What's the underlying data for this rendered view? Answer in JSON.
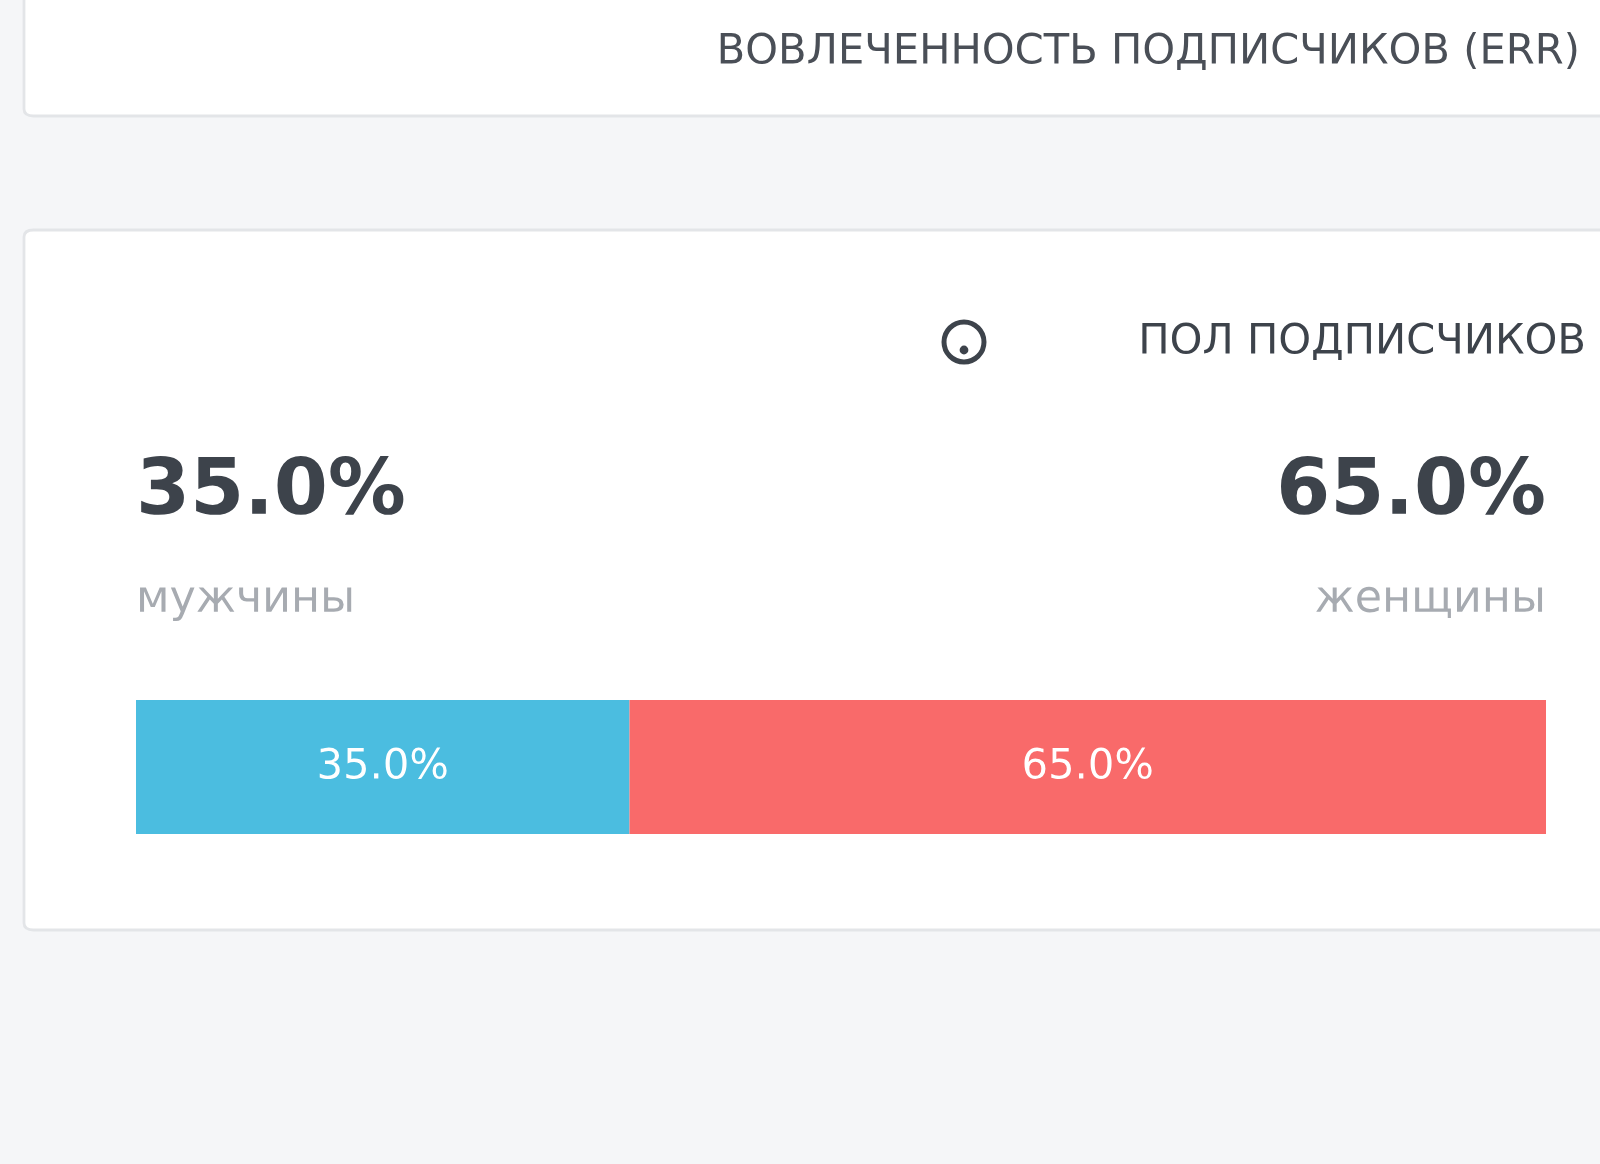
{
  "chart_data": {
    "type": "bar",
    "orientation": "horizontal",
    "stacked": true,
    "title": "ПОЛ ПОДПИСЧИКОВ",
    "annotations": [
      "ВОВЛЕЧЕННОСТЬ ПОДПИСЧИКОВ (ERR)"
    ],
    "categories": [
      null
    ],
    "series": [
      {
        "name": "мужчины",
        "color": "#4bbde0",
        "values": [
          35.0
        ],
        "value_labels": [
          "35.0%"
        ]
      },
      {
        "name": "женщины",
        "color": "#f96a6a",
        "values": [
          65.0
        ],
        "value_labels": [
          "65.0%"
        ]
      }
    ],
    "xlim": [
      0,
      100
    ]
  }
}
